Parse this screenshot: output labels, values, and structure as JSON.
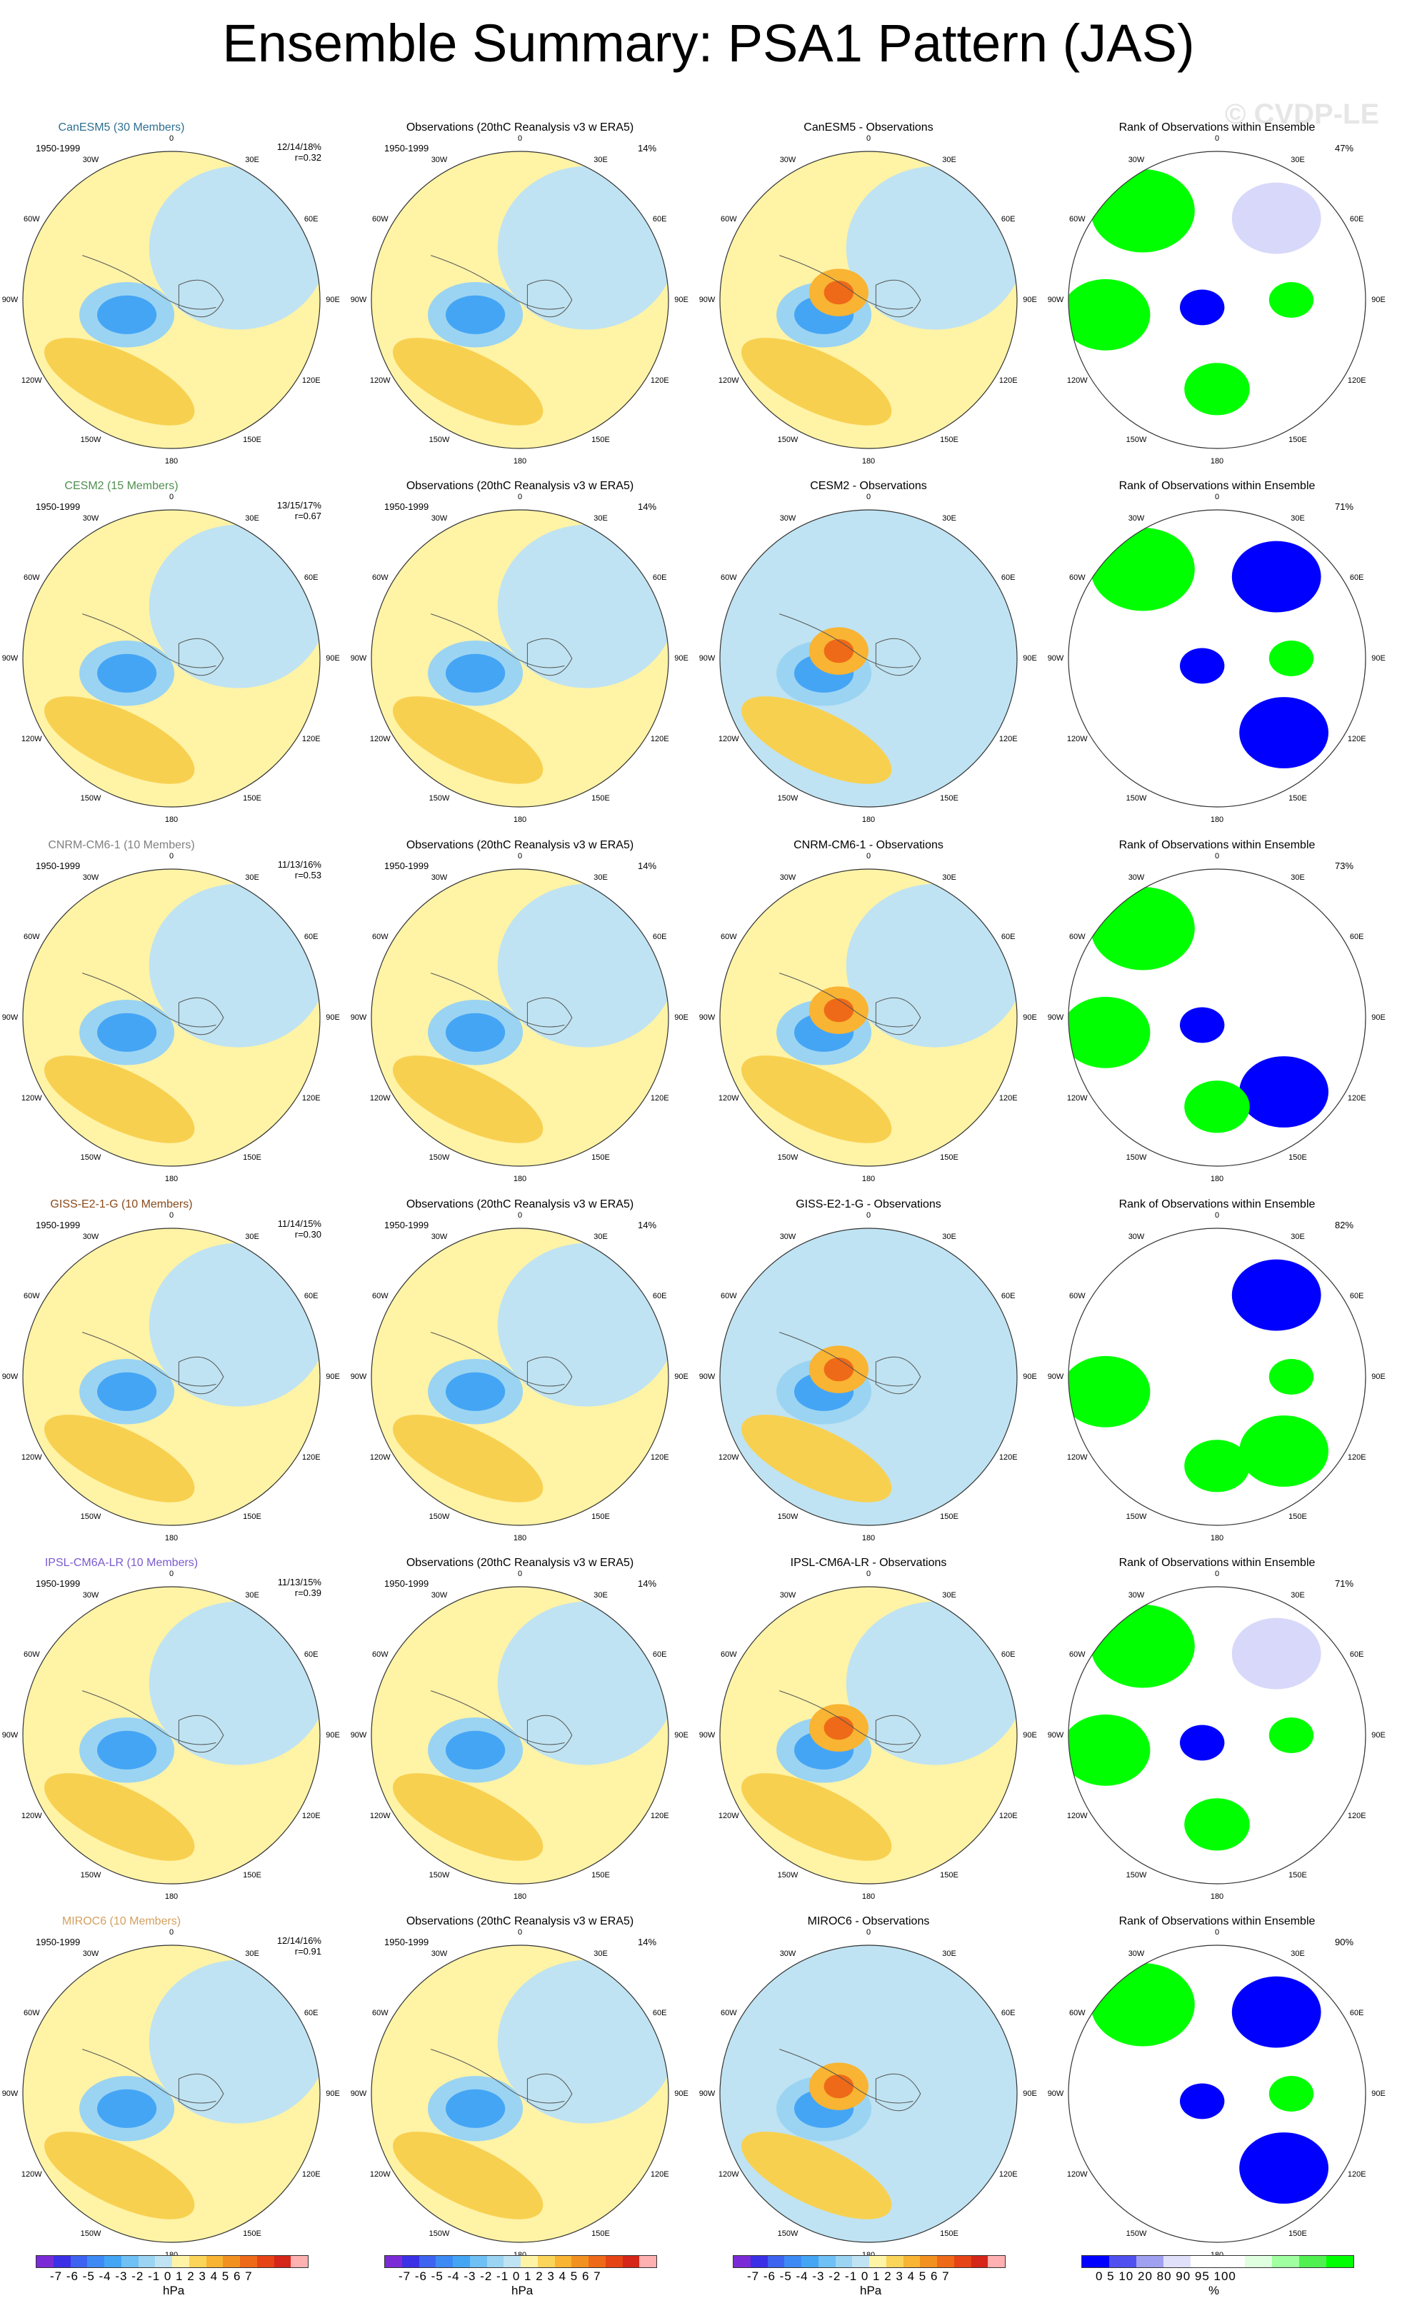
{
  "title": "Ensemble Summary: PSA1 Pattern (JAS)",
  "watermark": "© CVDP-LE",
  "period": "1950-1999",
  "lon_labels": {
    "n": "0",
    "ne": "30E",
    "e1": "60E",
    "e": "90E",
    "e2": "120E",
    "se": "150E",
    "s": "180",
    "sw": "150W",
    "w2": "120W",
    "w": "90W",
    "w1": "60W",
    "nw": "30W"
  },
  "obs_title": "Observations (20thC Reanalysis v3 w ERA5)",
  "obs_pct": "14%",
  "rank_title": "Rank of Observations within Ensemble",
  "rows": [
    {
      "model": "CanESM5 (30 Members)",
      "color": "#2f6f8f",
      "stats1": "12/14/18%",
      "stats2": "r=0.32",
      "diff_title": "CanESM5 - Observations",
      "rank_pct": "47%"
    },
    {
      "model": "CESM2 (15 Members)",
      "color": "#4f8f4f",
      "stats1": "13/15/17%",
      "stats2": "r=0.67",
      "diff_title": "CESM2 - Observations",
      "rank_pct": "71%"
    },
    {
      "model": "CNRM-CM6-1 (10 Members)",
      "color": "#808080",
      "stats1": "11/13/16%",
      "stats2": "r=0.53",
      "diff_title": "CNRM-CM6-1 - Observations",
      "rank_pct": "73%"
    },
    {
      "model": "GISS-E2-1-G (10 Members)",
      "color": "#8a4a1a",
      "stats1": "11/14/15%",
      "stats2": "r=0.30",
      "diff_title": "GISS-E2-1-G - Observations",
      "rank_pct": "82%"
    },
    {
      "model": "IPSL-CM6A-LR (10 Members)",
      "color": "#7a5acf",
      "stats1": "11/13/15%",
      "stats2": "r=0.39",
      "diff_title": "IPSL-CM6A-LR - Observations",
      "rank_pct": "71%"
    },
    {
      "model": "MIROC6 (10 Members)",
      "color": "#d4a060",
      "stats1": "12/14/16%",
      "stats2": "r=0.91",
      "diff_title": "MIROC6 - Observations",
      "rank_pct": "90%"
    }
  ],
  "colorbar_hpa": {
    "ticks": "-7 -6 -5 -4 -3 -2 -1 0  1  2  3  4  5  6  7",
    "unit": "hPa",
    "colors": [
      "#7b2bd6",
      "#3b30e6",
      "#3e63f0",
      "#3d8af5",
      "#45a5f5",
      "#6ec0f5",
      "#9bd4f2",
      "#bfe3f2",
      "#fff3a6",
      "#fbd45a",
      "#f8b432",
      "#f39120",
      "#ee6a18",
      "#e64316",
      "#d42619",
      "#ffb0b0"
    ]
  },
  "colorbar_pct": {
    "ticks": "0  5  10      20      80      90  95 100",
    "unit": "%",
    "colors": [
      "#0000ff",
      "#5050f0",
      "#a0a0f0",
      "#e0e0fa",
      "#ffffff",
      "#ffffff",
      "#e0ffe0",
      "#a0ffa0",
      "#50f050",
      "#00ff00"
    ]
  }
}
